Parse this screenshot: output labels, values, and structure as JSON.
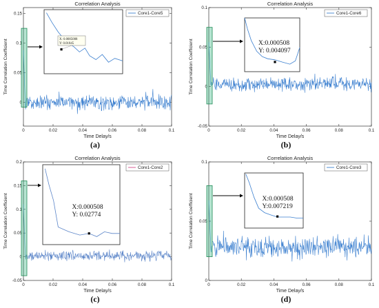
{
  "colors": {
    "series": "#3b7fcf",
    "series_c": "#5a84c8",
    "highlight_fill": "#2fb37a",
    "highlight_stroke": "#1f8a55",
    "axis": "#333333"
  },
  "chart_data": [
    {
      "type": "line",
      "caption": "(a)",
      "title": "Correlation Analysis",
      "xlabel": "Time Delay/s",
      "ylabel": "Time Correlation Coefficient",
      "xlim": [
        0,
        0.1
      ],
      "ylim": [
        -0.04,
        0.16
      ],
      "xticks": [
        "0",
        "0.02",
        "0.04",
        "0.06",
        "0.08",
        "0.1"
      ],
      "yticks": [
        "0",
        "0.05",
        "0.1",
        "0.15"
      ],
      "ytick_values": [
        0,
        0.05,
        0.1,
        0.15
      ],
      "series": [
        {
          "name": "Core1-Core5"
        }
      ],
      "noise": {
        "center": 0,
        "amplitude": 0.018,
        "spike_start": 0.06
      },
      "highlight": {
        "x_range": [
          0,
          0.0008
        ],
        "y_range": [
          -0.008,
          0.125
        ]
      },
      "inset": {
        "point": {
          "x": 0.0005008,
          "y": 0.01845
        },
        "label_x": "X: 0.0005008",
        "label_y": "Y: 0.01845"
      }
    },
    {
      "type": "line",
      "caption": "(b)",
      "title": "Correlation Analysis",
      "xlabel": "Time Delay/s",
      "ylabel": "Time Correlation Coefficient",
      "xlim": [
        0,
        0.1
      ],
      "ylim": [
        -0.05,
        0.1
      ],
      "xticks": [
        "0",
        "0.02",
        "0.04",
        "0.06",
        "0.08",
        "0.1"
      ],
      "yticks": [
        "-0.05",
        "0",
        "0.05",
        "0.1"
      ],
      "ytick_values": [
        -0.05,
        0,
        0.05,
        0.1
      ],
      "series": [
        {
          "name": "Core1-Core6"
        }
      ],
      "noise": {
        "center": 0.003,
        "amplitude": 0.012,
        "spike_start": 0.06
      },
      "highlight": {
        "x_range": [
          0,
          0.0008
        ],
        "y_range": [
          -0.022,
          0.075
        ]
      },
      "inset": {
        "point": {
          "x": 0.000508,
          "y": 0.004097
        },
        "label_x": "X:0.000508",
        "label_y": "Y: 0.004097"
      }
    },
    {
      "type": "line",
      "caption": "(c)",
      "title": "Correlation Analysis",
      "xlabel": "Time Delay/s",
      "ylabel": "Time Correlation Coefficient",
      "xlim": [
        0,
        0.1
      ],
      "ylim": [
        -0.05,
        0.2
      ],
      "xticks": [
        "0",
        "0.02",
        "0.04",
        "0.06",
        "0.08",
        "0.1"
      ],
      "yticks": [
        "-0.05",
        "0",
        "0.05",
        "0.1",
        "0.15",
        "0.2"
      ],
      "ytick_values": [
        -0.05,
        0,
        0.05,
        0.1,
        0.15,
        0.2
      ],
      "series": [
        {
          "name": "Core1-Core2"
        }
      ],
      "noise": {
        "center": 0.002,
        "amplitude": 0.014,
        "spike_start": 0.06
      },
      "highlight": {
        "x_range": [
          0,
          0.0008
        ],
        "y_range": [
          -0.04,
          0.16
        ]
      },
      "inset": {
        "point": {
          "x": 0.000508,
          "y": 0.02774
        },
        "label_x": "X:0.000508",
        "label_y": "Y: 0.02774"
      }
    },
    {
      "type": "line",
      "caption": "(d)",
      "title": "Correlation Analysis",
      "xlabel": "Time Delay/s",
      "ylabel": "Time Correlation Coefficient",
      "xlim": [
        0,
        0.1
      ],
      "ylim": [
        0,
        0.1
      ],
      "xticks": [
        "0",
        "0.02",
        "0.04",
        "0.06",
        "0.08",
        "0.1"
      ],
      "yticks": [
        "0",
        "0.05",
        "0.1"
      ],
      "ytick_values": [
        0,
        0.05,
        0.1
      ],
      "series": [
        {
          "name": "Core1-Core3"
        }
      ],
      "noise": {
        "center": 0.028,
        "amplitude": 0.012,
        "spike_start": 0.06
      },
      "highlight": {
        "x_range": [
          0,
          0.0008
        ],
        "y_range": [
          0.02,
          0.08
        ]
      },
      "inset": {
        "point": {
          "x": 0.000508,
          "y": 0.007219
        },
        "label_x": "X:0.000508",
        "label_y": "Y:0.007219"
      }
    }
  ]
}
